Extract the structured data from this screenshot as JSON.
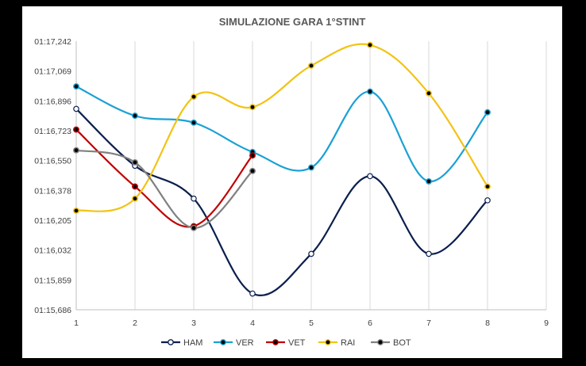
{
  "chart_data": {
    "type": "line",
    "title": "SIMULAZIONE GARA 1°STINT",
    "xlabel": "",
    "ylabel": "",
    "x_ticks": [
      "1",
      "2",
      "3",
      "4",
      "5",
      "6",
      "7",
      "8",
      "9"
    ],
    "xlim": [
      1,
      9
    ],
    "y_ticks": [
      "01:15,686",
      "01:15,859",
      "01:16,032",
      "01:16,205",
      "01:16,378",
      "01:16,550",
      "01:16,723",
      "01:16,896",
      "01:17,069",
      "01:17,242"
    ],
    "ylim": [
      75.686,
      77.242
    ],
    "grid": "vertical",
    "legend_position": "bottom",
    "series": [
      {
        "name": "HAM",
        "color": "#0b1f4d",
        "marker": "hollow",
        "x": [
          1,
          2,
          3,
          4,
          5,
          6,
          7,
          8
        ],
        "y": [
          76.85,
          76.52,
          76.33,
          75.78,
          76.01,
          76.46,
          76.01,
          76.32
        ]
      },
      {
        "name": "VER",
        "color": "#1ba1d4",
        "marker": "filled",
        "x": [
          1,
          2,
          3,
          4,
          5,
          6,
          7,
          8
        ],
        "y": [
          76.98,
          76.81,
          76.77,
          76.6,
          76.51,
          76.95,
          76.43,
          76.83
        ]
      },
      {
        "name": "VET",
        "color": "#c00000",
        "marker": "filled",
        "x": [
          1,
          2,
          3,
          4
        ],
        "y": [
          76.73,
          76.4,
          76.17,
          76.58
        ]
      },
      {
        "name": "RAI",
        "color": "#f2c314",
        "marker": "filled",
        "x": [
          1,
          2,
          3,
          4,
          5,
          6,
          7,
          8
        ],
        "y": [
          76.26,
          76.33,
          76.92,
          76.86,
          77.1,
          77.22,
          76.94,
          76.4
        ]
      },
      {
        "name": "BOT",
        "color": "#808080",
        "marker": "filled",
        "x": [
          1,
          2,
          3,
          4
        ],
        "y": [
          76.61,
          76.54,
          76.16,
          76.49
        ]
      }
    ]
  }
}
